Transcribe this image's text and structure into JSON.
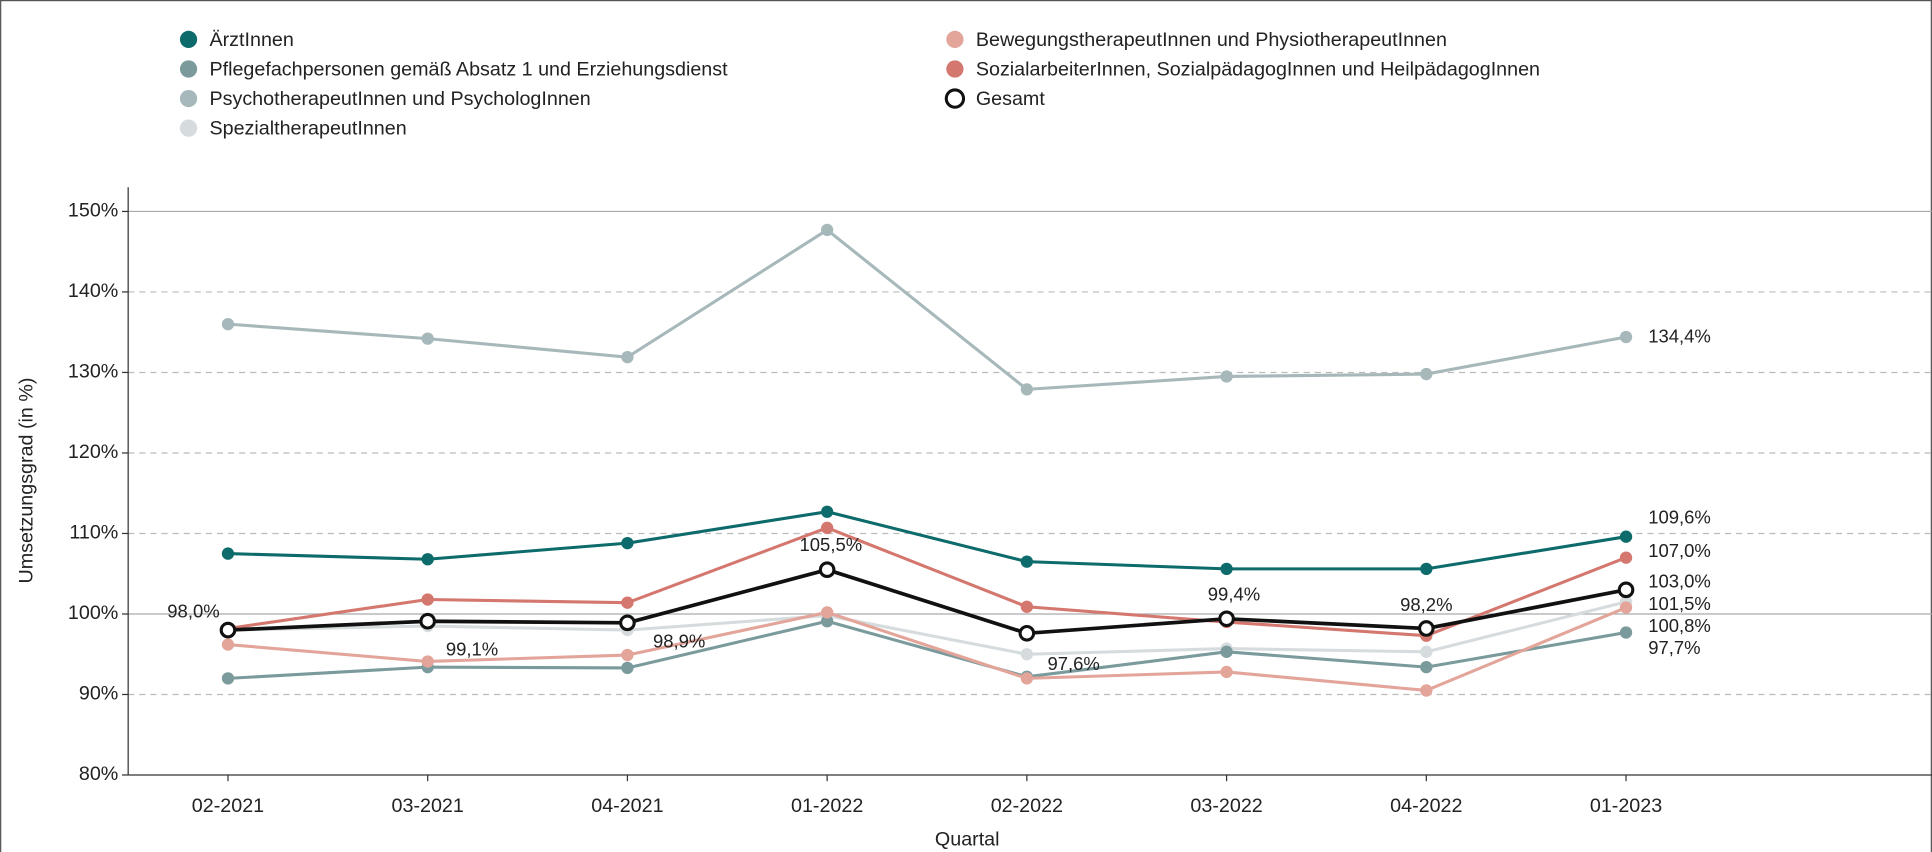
{
  "chart_data": {
    "type": "line",
    "categories": [
      "02-2021",
      "03-2021",
      "04-2021",
      "01-2022",
      "02-2022",
      "03-2022",
      "04-2022",
      "01-2023"
    ],
    "ylabel": "Umsetzungsgrad (in %)",
    "xlabel": "Quartal",
    "ylim": [
      80,
      153
    ],
    "yticks": [
      {
        "value": 80,
        "label": "80%"
      },
      {
        "value": 90,
        "label": "90%"
      },
      {
        "value": 100,
        "label": "100%"
      },
      {
        "value": 110,
        "label": "110%"
      },
      {
        "value": 120,
        "label": "120%"
      },
      {
        "value": 130,
        "label": "130%"
      },
      {
        "value": 140,
        "label": "140%"
      },
      {
        "value": 150,
        "label": "150%"
      }
    ],
    "grid": true,
    "reference_lines": [
      100,
      150
    ],
    "series": [
      {
        "name": "ÄrztInnen",
        "color": "#0e6b6b",
        "values": [
          107.5,
          106.8,
          108.8,
          112.7,
          106.5,
          105.6,
          105.6,
          109.6
        ],
        "value_labels": [
          null,
          null,
          null,
          null,
          null,
          null,
          null,
          "109,6%"
        ]
      },
      {
        "name": "Pflegefachpersonen gemäß Absatz 1 und Erziehungsdienst",
        "color": "#7a9a9c",
        "values": [
          92.0,
          93.4,
          93.3,
          99.1,
          92.2,
          95.3,
          93.4,
          97.7
        ],
        "value_labels": [
          null,
          null,
          null,
          null,
          null,
          null,
          null,
          "97,7%"
        ]
      },
      {
        "name": "PsychotherapeutInnen und PsychologInnen",
        "color": "#a7b8ba",
        "values": [
          136.0,
          134.2,
          131.9,
          147.7,
          127.9,
          129.5,
          129.8,
          134.4
        ],
        "value_labels": [
          null,
          null,
          null,
          null,
          null,
          null,
          null,
          "134,4%"
        ]
      },
      {
        "name": "SpezialtherapeutInnen",
        "color": "#d6dcdd",
        "values": [
          98.0,
          98.5,
          98.0,
          99.8,
          95.0,
          95.7,
          95.3,
          101.5
        ],
        "value_labels": [
          null,
          null,
          null,
          null,
          null,
          null,
          null,
          "101,5%"
        ]
      },
      {
        "name": "BewegungstherapeutInnen und PhysiotherapeutInnen",
        "color": "#e3a49a",
        "values": [
          96.2,
          94.1,
          94.9,
          100.2,
          92.0,
          92.8,
          90.5,
          100.8
        ],
        "value_labels": [
          null,
          null,
          null,
          null,
          null,
          null,
          null,
          "100,8%"
        ]
      },
      {
        "name": "SozialarbeiterInnen, SozialpädagogInnen und HeilpädagogInnen",
        "color": "#d4776e",
        "values": [
          98.2,
          101.8,
          101.4,
          110.7,
          100.9,
          99.0,
          97.3,
          107.0
        ],
        "value_labels": [
          null,
          null,
          null,
          null,
          null,
          null,
          null,
          "107,0%"
        ]
      },
      {
        "name": "Gesamt",
        "color": "#111111",
        "hollow": true,
        "values": [
          98.0,
          99.1,
          98.9,
          105.5,
          97.6,
          99.4,
          98.2,
          103.0
        ],
        "value_labels": [
          "98,0%",
          "99,1%",
          "98,9%",
          "105,5%",
          "97,6%",
          "99,4%",
          "98,2%",
          "103,0%"
        ]
      }
    ]
  }
}
